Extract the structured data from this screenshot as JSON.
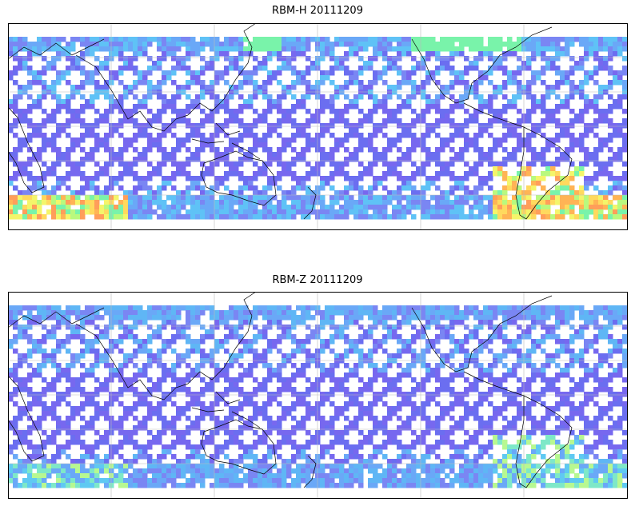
{
  "panels": [
    {
      "id": "top",
      "title": "RBM-H 20111209",
      "colors": {
        "high_lat": [
          "#ff9e5a",
          "#ffb455",
          "#ffd95e",
          "#f4f56a",
          "#b9f97e",
          "#79f3aa"
        ],
        "mid": [
          "#6aa8f7",
          "#5fc2f6",
          "#7a86f3"
        ],
        "low": [
          "#6b6ef0",
          "#7768ef"
        ]
      }
    },
    {
      "id": "bottom",
      "title": "RBM-Z 20111209",
      "colors": {
        "high_lat": [
          "#5fc9f2",
          "#7ee8c8",
          "#b7f891",
          "#6aa8f7"
        ],
        "mid": [
          "#6aa8f7",
          "#5fb6f5",
          "#7a86f3"
        ],
        "low": [
          "#6b6ef0",
          "#7768ef"
        ]
      }
    }
  ],
  "map": {
    "projection": "plate carree, Pacific-centred",
    "gridlines": true,
    "coastlines": true,
    "colors": {
      "coastline": "#000000",
      "gridline": "#bbbbbb",
      "frame": "#000000"
    }
  }
}
